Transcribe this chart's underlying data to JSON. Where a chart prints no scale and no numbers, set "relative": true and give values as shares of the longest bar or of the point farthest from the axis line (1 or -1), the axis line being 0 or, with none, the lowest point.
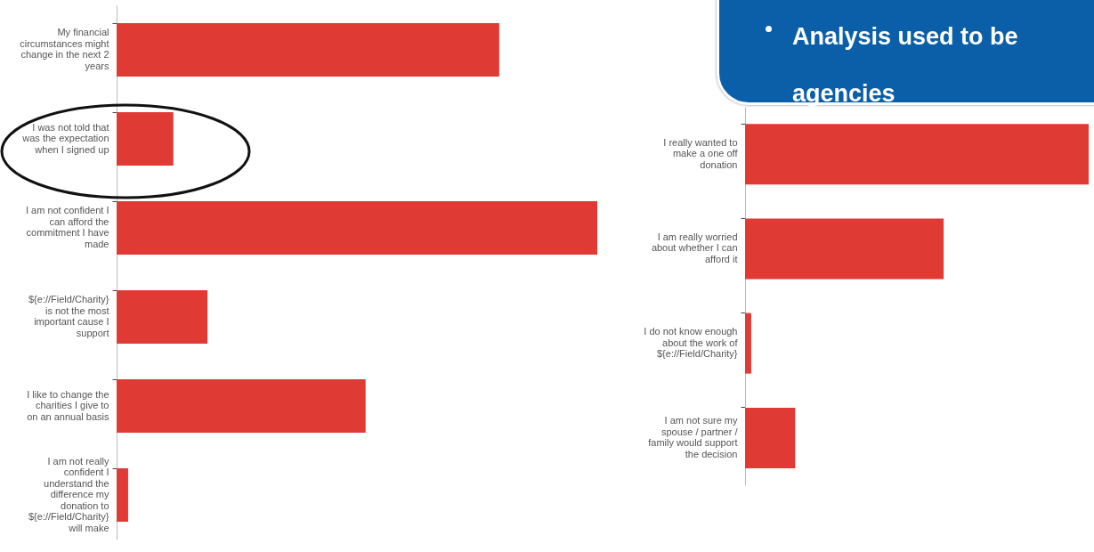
{
  "chart_data": [
    {
      "type": "bar",
      "orientation": "horizontal",
      "relative": true,
      "color": "#e03a35",
      "categories": [
        "My financial circumstances might change in the next 2 years",
        "I was not told that was the expectation when I signed up",
        "I am not confident I can afford the commitment I have made",
        "${e://Field/Charity} is not the most important cause I support",
        "I like to change the charities I give to on an annual basis",
        "I am not really confident I understand the difference my donation to ${e://Field/Charity} will make"
      ],
      "values": [
        0.796,
        0.118,
        1,
        0.189,
        0.518,
        0.024
      ]
    },
    {
      "type": "bar",
      "orientation": "horizontal",
      "relative": true,
      "color": "#e03a35",
      "categories": [
        "I really wanted to make a one off donation",
        "I am really worried about whether I can afford it",
        "I do not know enough about the work of ${e://Field/Charity}",
        "I am not sure my spouse / partner / family would support the decision"
      ],
      "values": [
        1,
        0.578,
        0.018,
        0.146
      ],
      "annotations": [
        "Analysis used to be",
        "agencies"
      ]
    }
  ]
}
